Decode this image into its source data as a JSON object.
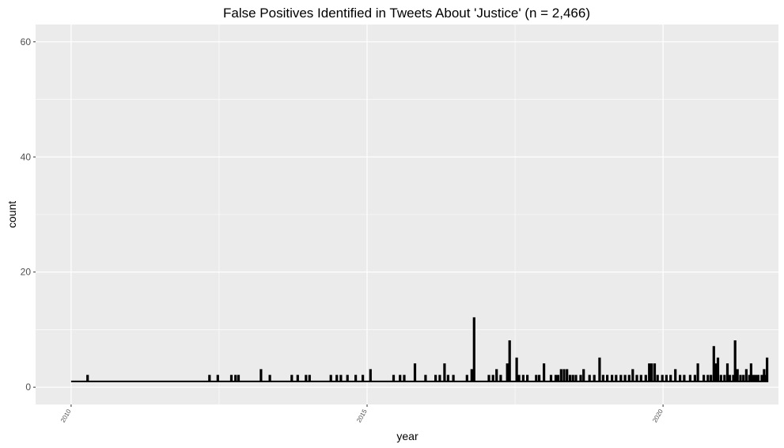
{
  "chart_data": {
    "type": "line",
    "title": "False Positives Identified in Tweets About 'Justice' (n = 2,466)",
    "xlabel": "year",
    "ylabel": "count",
    "xlim": [
      2009.4,
      2021.95
    ],
    "ylim": [
      -3,
      63
    ],
    "x_ticks": [
      2010,
      2015,
      2020
    ],
    "x_tick_labels": [
      "2010",
      "2015",
      "2020"
    ],
    "y_ticks": [
      0,
      20,
      40,
      60
    ],
    "y_tick_labels": [
      "0",
      "20",
      "40",
      "60"
    ],
    "grid": true,
    "colors": {
      "panel": "#ebebeb",
      "grid": "#ffffff",
      "line": "#000000",
      "tick_text": "#4d4d4d"
    },
    "baseline": 1,
    "x_start": 2010.0,
    "x_end": 2021.75,
    "spikes": [
      {
        "x": 2010.27,
        "y": 2
      },
      {
        "x": 2012.33,
        "y": 2
      },
      {
        "x": 2012.47,
        "y": 2
      },
      {
        "x": 2012.7,
        "y": 2
      },
      {
        "x": 2012.77,
        "y": 2
      },
      {
        "x": 2012.82,
        "y": 2
      },
      {
        "x": 2013.2,
        "y": 3
      },
      {
        "x": 2013.35,
        "y": 2
      },
      {
        "x": 2013.72,
        "y": 2
      },
      {
        "x": 2013.82,
        "y": 2
      },
      {
        "x": 2013.96,
        "y": 2
      },
      {
        "x": 2014.02,
        "y": 2
      },
      {
        "x": 2014.38,
        "y": 2
      },
      {
        "x": 2014.48,
        "y": 2
      },
      {
        "x": 2014.55,
        "y": 2
      },
      {
        "x": 2014.66,
        "y": 2
      },
      {
        "x": 2014.8,
        "y": 2
      },
      {
        "x": 2014.92,
        "y": 2
      },
      {
        "x": 2015.05,
        "y": 3
      },
      {
        "x": 2015.44,
        "y": 2
      },
      {
        "x": 2015.55,
        "y": 2
      },
      {
        "x": 2015.62,
        "y": 2
      },
      {
        "x": 2015.8,
        "y": 4
      },
      {
        "x": 2015.98,
        "y": 2
      },
      {
        "x": 2016.15,
        "y": 2
      },
      {
        "x": 2016.22,
        "y": 2
      },
      {
        "x": 2016.3,
        "y": 4
      },
      {
        "x": 2016.36,
        "y": 2
      },
      {
        "x": 2016.45,
        "y": 2
      },
      {
        "x": 2016.68,
        "y": 2
      },
      {
        "x": 2016.76,
        "y": 3
      },
      {
        "x": 2016.8,
        "y": 12
      },
      {
        "x": 2017.05,
        "y": 2
      },
      {
        "x": 2017.12,
        "y": 2
      },
      {
        "x": 2017.18,
        "y": 3
      },
      {
        "x": 2017.25,
        "y": 2
      },
      {
        "x": 2017.36,
        "y": 4
      },
      {
        "x": 2017.4,
        "y": 8
      },
      {
        "x": 2017.52,
        "y": 5
      },
      {
        "x": 2017.56,
        "y": 2
      },
      {
        "x": 2017.63,
        "y": 2
      },
      {
        "x": 2017.7,
        "y": 2
      },
      {
        "x": 2017.85,
        "y": 2
      },
      {
        "x": 2017.9,
        "y": 2
      },
      {
        "x": 2017.98,
        "y": 4
      },
      {
        "x": 2018.1,
        "y": 2
      },
      {
        "x": 2018.18,
        "y": 2
      },
      {
        "x": 2018.22,
        "y": 2
      },
      {
        "x": 2018.27,
        "y": 3
      },
      {
        "x": 2018.32,
        "y": 3
      },
      {
        "x": 2018.37,
        "y": 3
      },
      {
        "x": 2018.42,
        "y": 2
      },
      {
        "x": 2018.47,
        "y": 2
      },
      {
        "x": 2018.52,
        "y": 2
      },
      {
        "x": 2018.6,
        "y": 2
      },
      {
        "x": 2018.65,
        "y": 3
      },
      {
        "x": 2018.75,
        "y": 2
      },
      {
        "x": 2018.83,
        "y": 2
      },
      {
        "x": 2018.92,
        "y": 5
      },
      {
        "x": 2018.98,
        "y": 2
      },
      {
        "x": 2019.05,
        "y": 2
      },
      {
        "x": 2019.13,
        "y": 2
      },
      {
        "x": 2019.2,
        "y": 2
      },
      {
        "x": 2019.28,
        "y": 2
      },
      {
        "x": 2019.35,
        "y": 2
      },
      {
        "x": 2019.42,
        "y": 2
      },
      {
        "x": 2019.48,
        "y": 3
      },
      {
        "x": 2019.55,
        "y": 2
      },
      {
        "x": 2019.62,
        "y": 2
      },
      {
        "x": 2019.7,
        "y": 2
      },
      {
        "x": 2019.76,
        "y": 4
      },
      {
        "x": 2019.8,
        "y": 4
      },
      {
        "x": 2019.85,
        "y": 4
      },
      {
        "x": 2019.9,
        "y": 2
      },
      {
        "x": 2019.98,
        "y": 2
      },
      {
        "x": 2020.05,
        "y": 2
      },
      {
        "x": 2020.12,
        "y": 2
      },
      {
        "x": 2020.2,
        "y": 3
      },
      {
        "x": 2020.28,
        "y": 2
      },
      {
        "x": 2020.35,
        "y": 2
      },
      {
        "x": 2020.45,
        "y": 2
      },
      {
        "x": 2020.53,
        "y": 2
      },
      {
        "x": 2020.58,
        "y": 4
      },
      {
        "x": 2020.68,
        "y": 2
      },
      {
        "x": 2020.75,
        "y": 2
      },
      {
        "x": 2020.8,
        "y": 2
      },
      {
        "x": 2020.85,
        "y": 7
      },
      {
        "x": 2020.88,
        "y": 4
      },
      {
        "x": 2020.92,
        "y": 5
      },
      {
        "x": 2020.97,
        "y": 2
      },
      {
        "x": 2021.03,
        "y": 2
      },
      {
        "x": 2021.08,
        "y": 4
      },
      {
        "x": 2021.12,
        "y": 2
      },
      {
        "x": 2021.18,
        "y": 2
      },
      {
        "x": 2021.21,
        "y": 8
      },
      {
        "x": 2021.25,
        "y": 3
      },
      {
        "x": 2021.3,
        "y": 2
      },
      {
        "x": 2021.35,
        "y": 2
      },
      {
        "x": 2021.4,
        "y": 3
      },
      {
        "x": 2021.45,
        "y": 2
      },
      {
        "x": 2021.48,
        "y": 4
      },
      {
        "x": 2021.52,
        "y": 2
      },
      {
        "x": 2021.56,
        "y": 2
      },
      {
        "x": 2021.6,
        "y": 2
      },
      {
        "x": 2021.66,
        "y": 2
      },
      {
        "x": 2021.7,
        "y": 3
      },
      {
        "x": 2021.73,
        "y": 2
      },
      {
        "x": 2021.75,
        "y": 5
      }
    ]
  }
}
